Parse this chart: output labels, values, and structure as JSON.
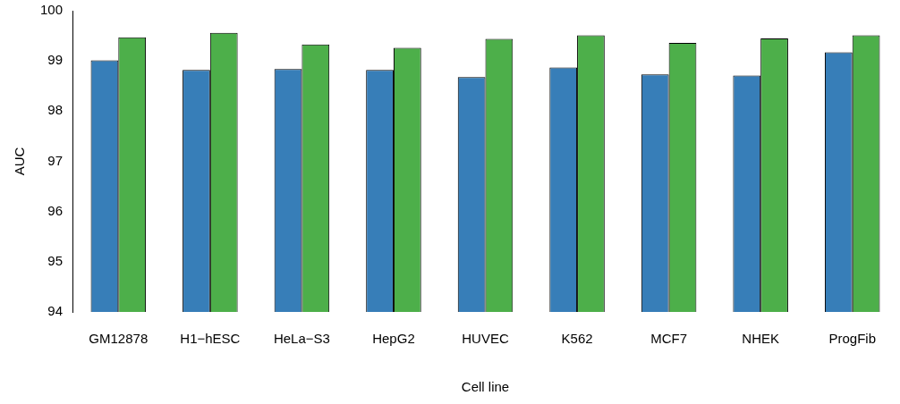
{
  "chart_data": {
    "type": "bar",
    "xlabel": "Cell line",
    "ylabel": "AUC",
    "categories": [
      "GM12878",
      "H1−hESC",
      "HeLa−S3",
      "HepG2",
      "HUVEC",
      "K562",
      "MCF7",
      "NHEK",
      "ProgFib"
    ],
    "series": [
      {
        "color": "#377eb8",
        "values": [
          99.01,
          98.82,
          98.84,
          98.82,
          98.68,
          98.87,
          98.73,
          98.71,
          99.17
        ]
      },
      {
        "color": "#4daf4a",
        "values": [
          99.47,
          99.56,
          99.33,
          99.26,
          99.44,
          99.51,
          99.36,
          99.45,
          99.51
        ]
      }
    ],
    "ylim": [
      94,
      100
    ],
    "yticks": [
      94,
      95,
      96,
      97,
      98,
      99,
      100
    ],
    "grid": false,
    "legend": false
  }
}
